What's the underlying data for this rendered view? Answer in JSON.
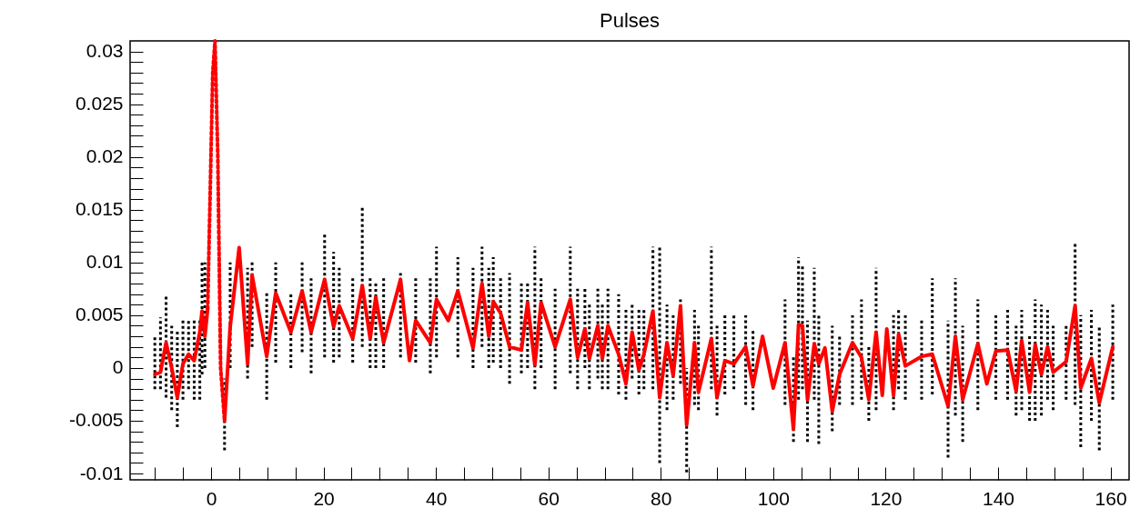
{
  "chart_data": {
    "type": "line",
    "title": "Pulses",
    "xlim": [
      -14.4,
      163.3
    ],
    "ylim": [
      -0.0106,
      0.031
    ],
    "xticks": [
      {
        "value": -10,
        "label": null
      },
      {
        "value": -5,
        "label": null
      },
      0,
      {
        "value": 5,
        "label": null
      },
      {
        "value": 10,
        "label": null
      },
      {
        "value": 15,
        "label": null
      },
      20,
      {
        "value": 25,
        "label": null
      },
      {
        "value": 30,
        "label": null
      },
      {
        "value": 35,
        "label": null
      },
      40,
      {
        "value": 45,
        "label": null
      },
      {
        "value": 50,
        "label": null
      },
      {
        "value": 55,
        "label": null
      },
      60,
      {
        "value": 65,
        "label": null
      },
      {
        "value": 70,
        "label": null
      },
      {
        "value": 75,
        "label": null
      },
      80,
      {
        "value": 85,
        "label": null
      },
      {
        "value": 90,
        "label": null
      },
      {
        "value": 95,
        "label": null
      },
      100,
      {
        "value": 105,
        "label": null
      },
      {
        "value": 110,
        "label": null
      },
      {
        "value": 115,
        "label": null
      },
      120,
      {
        "value": 125,
        "label": null
      },
      {
        "value": 130,
        "label": null
      },
      {
        "value": 135,
        "label": null
      },
      140,
      {
        "value": 145,
        "label": null
      },
      {
        "value": 150,
        "label": null
      },
      {
        "value": 155,
        "label": null
      },
      160
    ],
    "yticks": [
      -0.01,
      {
        "value": -0.009,
        "label": null
      },
      {
        "value": -0.008,
        "label": null
      },
      {
        "value": -0.007,
        "label": null
      },
      {
        "value": -0.006,
        "label": null
      },
      -0.005,
      {
        "value": -0.004,
        "label": null
      },
      {
        "value": -0.003,
        "label": null
      },
      {
        "value": -0.002,
        "label": null
      },
      {
        "value": -0.001,
        "label": null
      },
      0,
      {
        "value": 0.001,
        "label": null
      },
      {
        "value": 0.002,
        "label": null
      },
      {
        "value": 0.003,
        "label": null
      },
      {
        "value": 0.004,
        "label": null
      },
      0.005,
      {
        "value": 0.006,
        "label": null
      },
      {
        "value": 0.007,
        "label": null
      },
      {
        "value": 0.008,
        "label": null
      },
      {
        "value": 0.009,
        "label": null
      },
      0.01,
      {
        "value": 0.011,
        "label": null
      },
      {
        "value": 0.012,
        "label": null
      },
      {
        "value": 0.013,
        "label": null
      },
      {
        "value": 0.014,
        "label": null
      },
      0.015,
      {
        "value": 0.016,
        "label": null
      },
      {
        "value": 0.017,
        "label": null
      },
      {
        "value": 0.018,
        "label": null
      },
      {
        "value": 0.019,
        "label": null
      },
      0.02,
      {
        "value": 0.021,
        "label": null
      },
      {
        "value": 0.022,
        "label": null
      },
      {
        "value": 0.023,
        "label": null
      },
      {
        "value": 0.024,
        "label": null
      },
      0.025,
      {
        "value": 0.026,
        "label": null
      },
      {
        "value": 0.027,
        "label": null
      },
      {
        "value": 0.028,
        "label": null
      },
      {
        "value": 0.029,
        "label": null
      },
      0.03
    ],
    "grid": false,
    "series": [
      {
        "color": "#ff0000",
        "line_style": "solid",
        "x": [
          -10,
          -9,
          -8,
          -7,
          -6,
          -5,
          -4,
          -3,
          -2,
          -1.6,
          -1.1,
          -0.6,
          1,
          2.4,
          3.4,
          5.0,
          6.5,
          7.3,
          9.9,
          11.5,
          14.2,
          16.2,
          17.8,
          20.2,
          21.8,
          22.8,
          25.2,
          26.9,
          28.3,
          29.3,
          30.7,
          33.7,
          35.3,
          36.4,
          39,
          40.1,
          42.2,
          43.9,
          46.6,
          48.2,
          49.4,
          50.2,
          51.5,
          53.1,
          55.2,
          56.3,
          57.6,
          58.7,
          61.2,
          63.9,
          65.2,
          66.5,
          67.3,
          68.8,
          69.6,
          70.6,
          72.5,
          73.8,
          74.9,
          76.1,
          77,
          78.6,
          79.8,
          81.1,
          82.2,
          83.5,
          84.6,
          86,
          86.7,
          89,
          90,
          91.4,
          93,
          95.1,
          96.4,
          98.1,
          100,
          102.1,
          103.6,
          104.5,
          105.2,
          106.1,
          107.3,
          108.1,
          109.2,
          110.5,
          111.8,
          114.1,
          115.7,
          117,
          118.3,
          119.4,
          120.2,
          121.4,
          122.3,
          123.5,
          126.4,
          128.3,
          131.1,
          132.4,
          133.7,
          136.4,
          138,
          139.6,
          141.7,
          143.2,
          144.2,
          145.6,
          146.6,
          147.7,
          148.8,
          149.8,
          152.1,
          153.7,
          154.7,
          156.6,
          158,
          160.4
        ],
        "values": [
          -0.0006,
          -0.0004,
          0.0024,
          0.0,
          -0.0028,
          0.0004,
          0.0013,
          0.0007,
          0.0034,
          0.0054,
          0.003,
          0.0056,
          null,
          -0.005,
          0.0039,
          0.0114,
          0.0004,
          0.0088,
          0.0011,
          0.0071,
          0.0034,
          0.0073,
          0.0034,
          0.0084,
          0.0039,
          0.0059,
          0.0028,
          0.0078,
          0.0028,
          0.0067,
          0.0024,
          0.0084,
          0.0007,
          0.0045,
          0.0024,
          0.0065,
          0.0045,
          0.0073,
          0.0019,
          0.008,
          0.003,
          0.0063,
          0.0052,
          0.002,
          0.0017,
          0.0062,
          0.0003,
          0.0062,
          0.002,
          0.0065,
          0.001,
          0.0037,
          0.0009,
          0.004,
          0.0009,
          0.004,
          0.0013,
          -0.0015,
          0.0034,
          -0.0002,
          0.0013,
          0.0054,
          -0.0028,
          0.0024,
          -0.0007,
          0.0059,
          -0.0054,
          0.0024,
          -0.0023,
          0.0028,
          -0.0028,
          0.0007,
          0.0004,
          0.002,
          -0.0017,
          0.003,
          -0.0019,
          0.0024,
          -0.0058,
          0.0041,
          0.004,
          -0.003,
          0.0023,
          0.0004,
          0.0019,
          -0.0041,
          -0.0006,
          0.0024,
          0.001,
          -0.003,
          0.0034,
          -0.0026,
          0.0037,
          -0.0026,
          0.0032,
          0.0002,
          0.0011,
          0.0013,
          -0.0036,
          0.003,
          -0.003,
          0.0023,
          -0.0015,
          0.0016,
          0.0017,
          -0.0022,
          0.0026,
          -0.0023,
          0.0022,
          -0.0006,
          0.002,
          -0.0004,
          0.0006,
          0.0059,
          -0.0019,
          0.0009,
          -0.0033,
          0.002
        ],
        "errors": [
          [
            -0.002,
            0.003
          ],
          [
            -0.002,
            0.0048
          ],
          [
            -0.0028,
            0.0069
          ],
          [
            -0.004,
            0.004
          ],
          [
            -0.0056,
            0.0035
          ],
          [
            -0.003,
            0.0047
          ],
          [
            -0.002,
            0.0047
          ],
          [
            -0.003,
            0.0047
          ],
          [
            -0.003,
            0.0047
          ],
          [
            -0.0006,
            0.01
          ],
          [
            0.0,
            0.01
          ],
          null,
          null,
          [
            -0.0078,
            -0.001
          ],
          [
            0.0,
            0.01
          ],
          null,
          [
            -0.001,
            0.0095
          ],
          [
            0.002,
            0.01
          ],
          [
            -0.003,
            0.0072
          ],
          [
            0.0005,
            0.01
          ],
          [
            0.0,
            0.007
          ],
          [
            0.0015,
            0.01
          ],
          [
            -0.0005,
            0.0085
          ],
          [
            0.001,
            0.0129
          ],
          [
            0.0005,
            0.011
          ],
          [
            0.001,
            0.0095
          ],
          [
            0.0005,
            0.0085
          ],
          [
            0.002,
            0.0153
          ],
          [
            0.0,
            0.0085
          ],
          [
            0.0,
            0.008
          ],
          [
            0.0,
            0.0085
          ],
          [
            0.001,
            0.009
          ],
          null,
          [
            0.0005,
            0.0085
          ],
          [
            -0.0005,
            0.0085
          ],
          [
            0.001,
            0.0115
          ],
          null,
          [
            0.001,
            0.0105
          ],
          [
            0.0,
            0.0095
          ],
          [
            0.002,
            0.0115
          ],
          [
            0.0,
            0.0095
          ],
          [
            0.0005,
            0.0105
          ],
          [
            0.0,
            0.0085
          ],
          [
            -0.0015,
            0.009
          ],
          [
            -0.0005,
            0.008
          ],
          [
            0.0,
            0.008
          ],
          [
            -0.002,
            0.0115
          ],
          [
            0.0,
            0.0085
          ],
          [
            -0.002,
            0.0075
          ],
          [
            -0.0005,
            0.0115
          ],
          [
            -0.002,
            0.0075
          ],
          [
            0.0,
            0.0075
          ],
          [
            -0.002,
            0.006
          ],
          [
            -0.001,
            0.0075
          ],
          [
            -0.002,
            0.006
          ],
          [
            -0.002,
            0.0075
          ],
          [
            -0.0025,
            0.007
          ],
          [
            -0.003,
            0.0055
          ],
          [
            -0.001,
            0.006
          ],
          [
            -0.0025,
            0.0055
          ],
          [
            -0.002,
            0.0055
          ],
          [
            -0.002,
            0.0115
          ],
          [
            -0.009,
            0.0115
          ],
          [
            -0.004,
            0.006
          ],
          [
            -0.003,
            0.005
          ],
          [
            -0.0015,
            0.0065
          ],
          [
            -0.0099,
            0.0
          ],
          [
            -0.0035,
            0.0055
          ],
          [
            -0.004,
            0.004
          ],
          [
            -0.002,
            0.0115
          ],
          [
            -0.0045,
            0.004
          ],
          [
            -0.0025,
            0.005
          ],
          [
            -0.002,
            0.005
          ],
          [
            -0.0035,
            0.005
          ],
          [
            -0.004,
            0.0035
          ],
          null,
          null,
          [
            -0.0035,
            0.0065
          ],
          [
            -0.007,
            0.001
          ],
          [
            -0.003,
            0.0105
          ],
          [
            -0.002,
            0.0098
          ],
          [
            -0.007,
            0.0045
          ],
          [
            -0.003,
            0.0095
          ],
          [
            -0.0072,
            0.005
          ],
          null,
          [
            -0.006,
            0.004
          ],
          [
            -0.0035,
            0.003
          ],
          [
            -0.0035,
            0.005
          ],
          [
            -0.003,
            0.0065
          ],
          [
            -0.005,
            0.002
          ],
          [
            -0.004,
            0.0095
          ],
          null,
          null,
          [
            -0.004,
            0.005
          ],
          [
            -0.002,
            0.0055
          ],
          [
            -0.003,
            0.005
          ],
          [
            -0.003,
            0.0045
          ],
          [
            -0.0025,
            0.0085
          ],
          [
            -0.0085,
            0.0045
          ],
          [
            -0.0045,
            0.0085
          ],
          [
            -0.007,
            0.004
          ],
          [
            -0.004,
            0.0065
          ],
          null,
          [
            -0.003,
            0.005
          ],
          [
            -0.003,
            0.0055
          ],
          [
            -0.0045,
            0.004
          ],
          [
            -0.004,
            0.0055
          ],
          [
            -0.005,
            0.003
          ],
          [
            -0.005,
            0.0065
          ],
          [
            -0.0045,
            0.006
          ],
          [
            -0.003,
            0.0055
          ],
          [
            -0.004,
            0.004
          ],
          [
            -0.003,
            0.004
          ],
          [
            -0.0035,
            0.0118
          ],
          [
            -0.0075,
            0.005
          ],
          [
            -0.005,
            0.0055
          ],
          [
            -0.0078,
            0.004
          ],
          [
            -0.003,
            0.006
          ]
        ]
      },
      {
        "color": "#ff0000",
        "line_style": "dotted",
        "x": [
          -0.6,
          0.3,
          0.7,
          1.2,
          1.7,
          2.4
        ],
        "values": [
          0.0056,
          0.028,
          0.031,
          0.02,
          0.0,
          -0.005
        ],
        "errors": [
          null,
          null,
          null,
          null,
          null,
          null
        ]
      }
    ]
  }
}
